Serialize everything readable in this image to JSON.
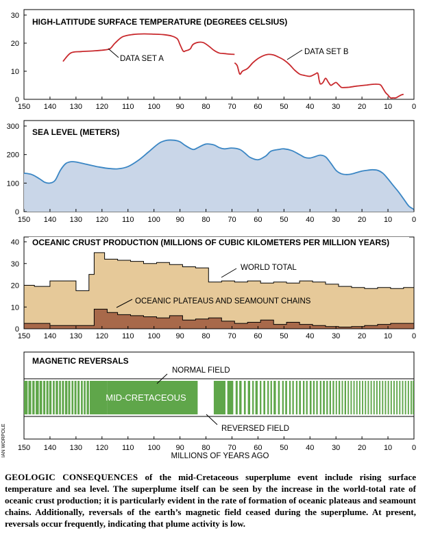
{
  "credit": "IAN WORPOLE",
  "caption": {
    "lead": "GEOLOGIC CONSEQUENCES",
    "text": " of the mid-Cretaceous superplume event include rising surface temperature and sea level. The superplume itself can be seen by the increase in the world-total rate of oceanic crust production; it is particularly evident in the rate of formation of oceanic plateaus and seamount chains. Additionally, reversals of the earth’s magnetic field ceased during the superplume. At present, reversals occur frequently, indicating that plume activity is low."
  },
  "colors": {
    "temperature": "#c8282c",
    "sea_fill": "#c9d6e8",
    "sea_line": "#3a86c4",
    "world_total": "#e6c999",
    "plateaus": "#a8694a",
    "normal_field": "#5fa64a"
  },
  "chart_data": [
    {
      "type": "line",
      "id": "temperature",
      "title": "HIGH-LATITUDE SURFACE TEMPERATURE (DEGREES CELSIUS)",
      "xlim": [
        150,
        0
      ],
      "ylim": [
        0,
        30
      ],
      "xticks": [
        150,
        140,
        130,
        120,
        110,
        100,
        90,
        80,
        70,
        60,
        50,
        40,
        30,
        20,
        10,
        0
      ],
      "yticks": [
        0,
        10,
        20,
        30
      ],
      "series": [
        {
          "name": "DATA SET A",
          "x": [
            135,
            132,
            128,
            124,
            120,
            117,
            115,
            112,
            108,
            104,
            100,
            96,
            93,
            91,
            90,
            89,
            88.5,
            88,
            87,
            86,
            85,
            83,
            81,
            79,
            77,
            75,
            73,
            71,
            69
          ],
          "y": [
            13.5,
            16.5,
            17,
            17.2,
            17.5,
            18,
            20,
            22.3,
            23.1,
            23.3,
            23.2,
            23,
            22.5,
            21.5,
            19.5,
            17.5,
            17,
            17.2,
            17.5,
            18,
            19.5,
            20.3,
            20.2,
            19,
            17.5,
            16.5,
            16.3,
            16.1,
            16
          ]
        },
        {
          "name": "DATA SET B",
          "x": [
            69,
            68,
            67,
            66,
            64,
            62,
            60,
            58,
            56,
            54,
            52,
            50,
            48,
            46,
            44,
            42,
            40,
            38,
            37,
            36.5,
            36,
            35,
            34,
            33,
            32,
            31,
            30,
            29,
            28,
            27,
            25,
            22,
            20,
            18,
            15,
            13,
            12,
            11,
            10,
            9,
            8,
            7,
            6,
            5,
            4
          ],
          "y": [
            13,
            12,
            9,
            10,
            11,
            13,
            14.5,
            15.5,
            16,
            15.8,
            15,
            14,
            12.5,
            10.5,
            9,
            8.5,
            8.2,
            9,
            9.3,
            7,
            5.5,
            6,
            7.5,
            6.2,
            5,
            5.5,
            6,
            5.2,
            4.3,
            4.2,
            4.3,
            4.7,
            4.9,
            5.1,
            5.4,
            5.2,
            4,
            2.5,
            1.5,
            0.5,
            0.5,
            0.5,
            1,
            1.5,
            1.8
          ]
        }
      ],
      "annotations": [
        "DATA SET A",
        "DATA SET B"
      ]
    },
    {
      "type": "area",
      "id": "sea_level",
      "title": "SEA LEVEL (METERS)",
      "xlim": [
        150,
        0
      ],
      "ylim": [
        0,
        300
      ],
      "xticks": [
        150,
        140,
        130,
        120,
        110,
        100,
        90,
        80,
        70,
        60,
        50,
        40,
        30,
        20,
        10,
        0
      ],
      "yticks": [
        0,
        100,
        200,
        300
      ],
      "series": [
        {
          "x": [
            150,
            147,
            144,
            142,
            140,
            138,
            136,
            134,
            132,
            130,
            126,
            122,
            118,
            114,
            110,
            106,
            102,
            98,
            95,
            92,
            90,
            88,
            85,
            83,
            80,
            77,
            75,
            73,
            70,
            67,
            65,
            63,
            60,
            57,
            55,
            52,
            50,
            47,
            44,
            42,
            40,
            38,
            36,
            34,
            32,
            30,
            28,
            26,
            24,
            22,
            20,
            18,
            16,
            14,
            12,
            10,
            8,
            6,
            4,
            2,
            0
          ],
          "y": [
            135,
            130,
            115,
            103,
            100,
            110,
            145,
            168,
            175,
            174,
            166,
            158,
            152,
            150,
            158,
            180,
            210,
            240,
            250,
            250,
            245,
            232,
            218,
            225,
            237,
            234,
            225,
            220,
            223,
            218,
            205,
            190,
            182,
            195,
            212,
            218,
            220,
            214,
            200,
            190,
            188,
            193,
            198,
            192,
            170,
            145,
            133,
            130,
            132,
            137,
            142,
            145,
            147,
            145,
            135,
            115,
            92,
            70,
            45,
            20,
            8
          ]
        }
      ]
    },
    {
      "type": "area",
      "id": "crust",
      "title": "OCEANIC CRUST PRODUCTION (MILLIONS OF CUBIC KILOMETERS PER MILLION YEARS)",
      "xlim": [
        150,
        0
      ],
      "ylim": [
        0,
        40
      ],
      "xticks": [
        150,
        140,
        130,
        120,
        110,
        100,
        90,
        80,
        70,
        60,
        50,
        40,
        30,
        20,
        10,
        0
      ],
      "yticks": [
        0,
        10,
        20,
        30,
        40
      ],
      "series": [
        {
          "name": "WORLD TOTAL",
          "x": [
            150,
            146,
            146,
            140,
            140,
            130,
            130,
            125,
            125,
            123,
            123,
            119,
            119,
            114,
            114,
            109,
            109,
            104,
            104,
            99,
            99,
            94,
            94,
            89,
            89,
            84,
            84,
            79,
            79,
            74,
            74,
            69,
            69,
            64,
            64,
            59,
            59,
            54,
            54,
            49,
            49,
            44,
            44,
            39,
            39,
            34,
            34,
            29,
            29,
            24,
            24,
            19,
            19,
            14,
            14,
            9,
            9,
            4,
            4,
            0
          ],
          "y": [
            20,
            20,
            19.5,
            19.5,
            22,
            22,
            17.5,
            17.5,
            25,
            25,
            35,
            35,
            32,
            32,
            31.5,
            31.5,
            31,
            31,
            30,
            30,
            30.5,
            30.5,
            29.5,
            29.5,
            28.5,
            28.5,
            28,
            28,
            21.5,
            21.5,
            22,
            22,
            21.5,
            21.5,
            22,
            22,
            21,
            21,
            21.5,
            21.5,
            21,
            21,
            22,
            22,
            21.5,
            21.5,
            20.5,
            20.5,
            19.5,
            19.5,
            19,
            19,
            18.5,
            18.5,
            19,
            19,
            18.5,
            18.5,
            19,
            19
          ]
        },
        {
          "name": "OCEANIC PLATEAUS AND SEAMOUNT CHAINS",
          "x": [
            150,
            140,
            140,
            131,
            131,
            125,
            125,
            123,
            123,
            118,
            118,
            114,
            114,
            109,
            109,
            104,
            104,
            99,
            99,
            94,
            94,
            89,
            89,
            84,
            84,
            79,
            79,
            74,
            74,
            69,
            69,
            64,
            64,
            59,
            59,
            54,
            54,
            49,
            49,
            44,
            44,
            39,
            39,
            34,
            34,
            29,
            29,
            24,
            24,
            19,
            19,
            14,
            14,
            9,
            9,
            4,
            4,
            0
          ],
          "y": [
            2.5,
            2.5,
            1.5,
            1.5,
            1.5,
            1.5,
            1.5,
            1.5,
            9,
            9,
            7.5,
            7.5,
            6.5,
            6.5,
            6,
            6,
            5.5,
            5.5,
            5,
            5,
            6,
            6,
            4,
            4,
            4.5,
            4.5,
            5,
            5,
            3.5,
            3.5,
            2.5,
            2.5,
            3,
            3,
            4,
            4,
            2,
            2,
            3,
            3,
            2,
            2,
            1.5,
            1.5,
            1,
            1,
            0.8,
            0.8,
            1,
            1,
            1.5,
            1.5,
            2,
            2,
            2.5,
            2.5,
            2.5,
            2.5
          ]
        }
      ],
      "annotations": [
        "WORLD TOTAL",
        "OCEANIC PLATEAUS AND SEAMOUNT CHAINS"
      ]
    },
    {
      "type": "bar",
      "id": "magnetic",
      "title": "MAGNETIC REVERSALS",
      "xlabel": "MILLIONS OF YEARS AGO",
      "xlim": [
        150,
        0
      ],
      "xticks": [
        150,
        140,
        130,
        120,
        110,
        100,
        90,
        80,
        70,
        60,
        50,
        40,
        30,
        20,
        10,
        0
      ],
      "normal_intervals": [
        [
          150,
          148.6
        ],
        [
          148.3,
          147.2
        ],
        [
          146.8,
          145.9
        ],
        [
          145.5,
          144.3
        ],
        [
          144.0,
          143.0
        ],
        [
          142.6,
          141.8
        ],
        [
          141.4,
          140.6
        ],
        [
          140.3,
          139.4
        ],
        [
          138.9,
          138.2
        ],
        [
          137.8,
          136.9
        ],
        [
          136.5,
          135.8
        ],
        [
          135.4,
          134.6
        ],
        [
          134.2,
          133.3
        ],
        [
          133.0,
          132.2
        ],
        [
          131.7,
          131.0
        ],
        [
          130.6,
          129.8
        ],
        [
          129.4,
          128.6
        ],
        [
          128.1,
          127.4
        ],
        [
          127.0,
          126.3
        ],
        [
          125.9,
          125.0
        ],
        [
          124.7,
          118.0
        ],
        [
          118.0,
          83.2
        ],
        [
          77.0,
          72.5
        ],
        [
          71.8,
          69.5
        ],
        [
          68.6,
          67.8
        ],
        [
          67.2,
          66.3
        ],
        [
          65.4,
          64.7
        ],
        [
          63.9,
          63.0
        ],
        [
          62.2,
          61.6
        ],
        [
          61.0,
          60.1
        ],
        [
          59.3,
          58.7
        ],
        [
          57.9,
          57.2
        ],
        [
          56.4,
          55.8
        ],
        [
          55.2,
          54.6
        ],
        [
          54.0,
          53.1
        ],
        [
          52.3,
          51.6
        ],
        [
          50.7,
          50.1
        ],
        [
          49.5,
          48.8
        ],
        [
          48.0,
          47.4
        ],
        [
          46.8,
          46.2
        ],
        [
          45.4,
          44.8
        ],
        [
          44.2,
          43.5
        ],
        [
          42.7,
          42.1
        ],
        [
          41.5,
          40.9
        ],
        [
          40.1,
          39.4
        ],
        [
          38.8,
          38.2
        ],
        [
          37.6,
          37.0
        ],
        [
          36.2,
          35.6
        ],
        [
          35.0,
          34.3
        ],
        [
          33.7,
          33.1
        ],
        [
          32.5,
          31.9
        ],
        [
          31.3,
          30.7
        ],
        [
          30.1,
          29.6
        ],
        [
          29.0,
          28.4
        ],
        [
          27.8,
          27.3
        ],
        [
          26.7,
          26.1
        ],
        [
          25.5,
          25.0
        ],
        [
          24.4,
          23.9
        ],
        [
          23.3,
          22.8
        ],
        [
          22.2,
          21.7
        ],
        [
          21.1,
          20.6
        ],
        [
          20.0,
          19.5
        ],
        [
          18.9,
          18.4
        ],
        [
          17.8,
          17.3
        ],
        [
          16.7,
          16.2
        ],
        [
          15.6,
          15.1
        ],
        [
          14.5,
          14.0
        ],
        [
          13.4,
          12.9
        ],
        [
          12.3,
          11.8
        ],
        [
          11.2,
          10.7
        ],
        [
          10.1,
          9.6
        ],
        [
          9.0,
          8.5
        ],
        [
          7.9,
          7.4
        ],
        [
          6.8,
          6.3
        ],
        [
          5.7,
          5.2
        ],
        [
          4.6,
          4.1
        ],
        [
          3.5,
          3.0
        ],
        [
          2.4,
          1.9
        ],
        [
          1.3,
          0.8
        ],
        [
          0.5,
          0
        ]
      ],
      "labels": {
        "superchron": "MID-CRETACEOUS",
        "normal": "NORMAL FIELD",
        "reversed": "REVERSED FIELD"
      }
    }
  ]
}
